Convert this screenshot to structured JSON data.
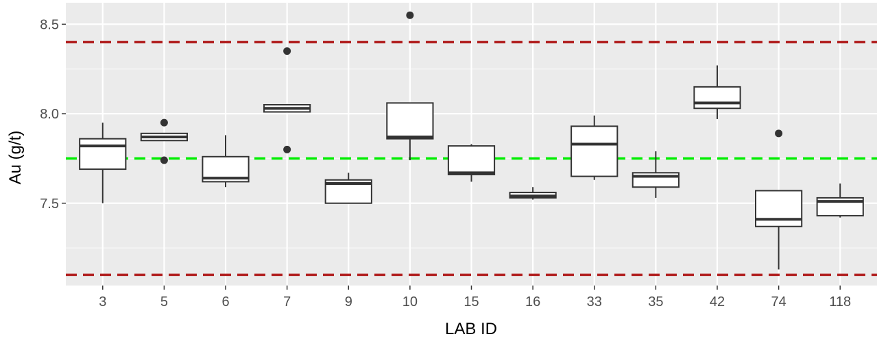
{
  "chart_data": {
    "type": "box",
    "xlabel": "LAB ID",
    "ylabel": "Au (g/t)",
    "ylim": [
      7.04,
      8.62
    ],
    "yticks": [
      7.5,
      8.0,
      8.5
    ],
    "ytick_labels": [
      "7.5",
      "8.0",
      "8.5"
    ],
    "grid": true,
    "categories": [
      "3",
      "5",
      "6",
      "7",
      "9",
      "10",
      "15",
      "16",
      "33",
      "35",
      "42",
      "74",
      "118"
    ],
    "boxes": [
      {
        "lab": "3",
        "whisker_low": 7.5,
        "q1": 7.69,
        "median": 7.82,
        "q3": 7.86,
        "whisker_high": 7.95,
        "outliers": []
      },
      {
        "lab": "5",
        "whisker_low": 7.85,
        "q1": 7.85,
        "median": 7.87,
        "q3": 7.89,
        "whisker_high": 7.89,
        "outliers": [
          7.95,
          7.74
        ]
      },
      {
        "lab": "6",
        "whisker_low": 7.59,
        "q1": 7.62,
        "median": 7.64,
        "q3": 7.76,
        "whisker_high": 7.88,
        "outliers": []
      },
      {
        "lab": "7",
        "whisker_low": 8.01,
        "q1": 8.01,
        "median": 8.03,
        "q3": 8.05,
        "whisker_high": 8.05,
        "outliers": [
          8.35,
          7.8
        ]
      },
      {
        "lab": "9",
        "whisker_low": 7.5,
        "q1": 7.5,
        "median": 7.61,
        "q3": 7.63,
        "whisker_high": 7.67,
        "outliers": []
      },
      {
        "lab": "10",
        "whisker_low": 7.74,
        "q1": 7.86,
        "median": 7.87,
        "q3": 8.06,
        "whisker_high": 8.06,
        "outliers": [
          8.55
        ]
      },
      {
        "lab": "15",
        "whisker_low": 7.62,
        "q1": 7.66,
        "median": 7.67,
        "q3": 7.82,
        "whisker_high": 7.83,
        "outliers": []
      },
      {
        "lab": "16",
        "whisker_low": 7.52,
        "q1": 7.53,
        "median": 7.54,
        "q3": 7.56,
        "whisker_high": 7.59,
        "outliers": []
      },
      {
        "lab": "33",
        "whisker_low": 7.63,
        "q1": 7.65,
        "median": 7.83,
        "q3": 7.93,
        "whisker_high": 7.99,
        "outliers": []
      },
      {
        "lab": "35",
        "whisker_low": 7.53,
        "q1": 7.59,
        "median": 7.65,
        "q3": 7.67,
        "whisker_high": 7.79,
        "outliers": []
      },
      {
        "lab": "42",
        "whisker_low": 7.97,
        "q1": 8.03,
        "median": 8.06,
        "q3": 8.15,
        "whisker_high": 8.27,
        "outliers": []
      },
      {
        "lab": "74",
        "whisker_low": 7.13,
        "q1": 7.37,
        "median": 7.41,
        "q3": 7.57,
        "whisker_high": 7.57,
        "outliers": [
          7.89
        ]
      },
      {
        "lab": "118",
        "whisker_low": 7.42,
        "q1": 7.43,
        "median": 7.51,
        "q3": 7.53,
        "whisker_high": 7.61,
        "outliers": []
      }
    ],
    "reference_lines": [
      {
        "value": 8.4,
        "color": "#b22222",
        "style": "dashed"
      },
      {
        "value": 7.75,
        "color": "#00ee00",
        "style": "dashed"
      },
      {
        "value": 7.1,
        "color": "#b22222",
        "style": "dashed"
      }
    ]
  },
  "colors": {
    "panel_background": "#ebebeb",
    "grid_major": "#ffffff",
    "box_fill": "#ffffff",
    "box_stroke": "#333333",
    "outlier": "#333333"
  }
}
